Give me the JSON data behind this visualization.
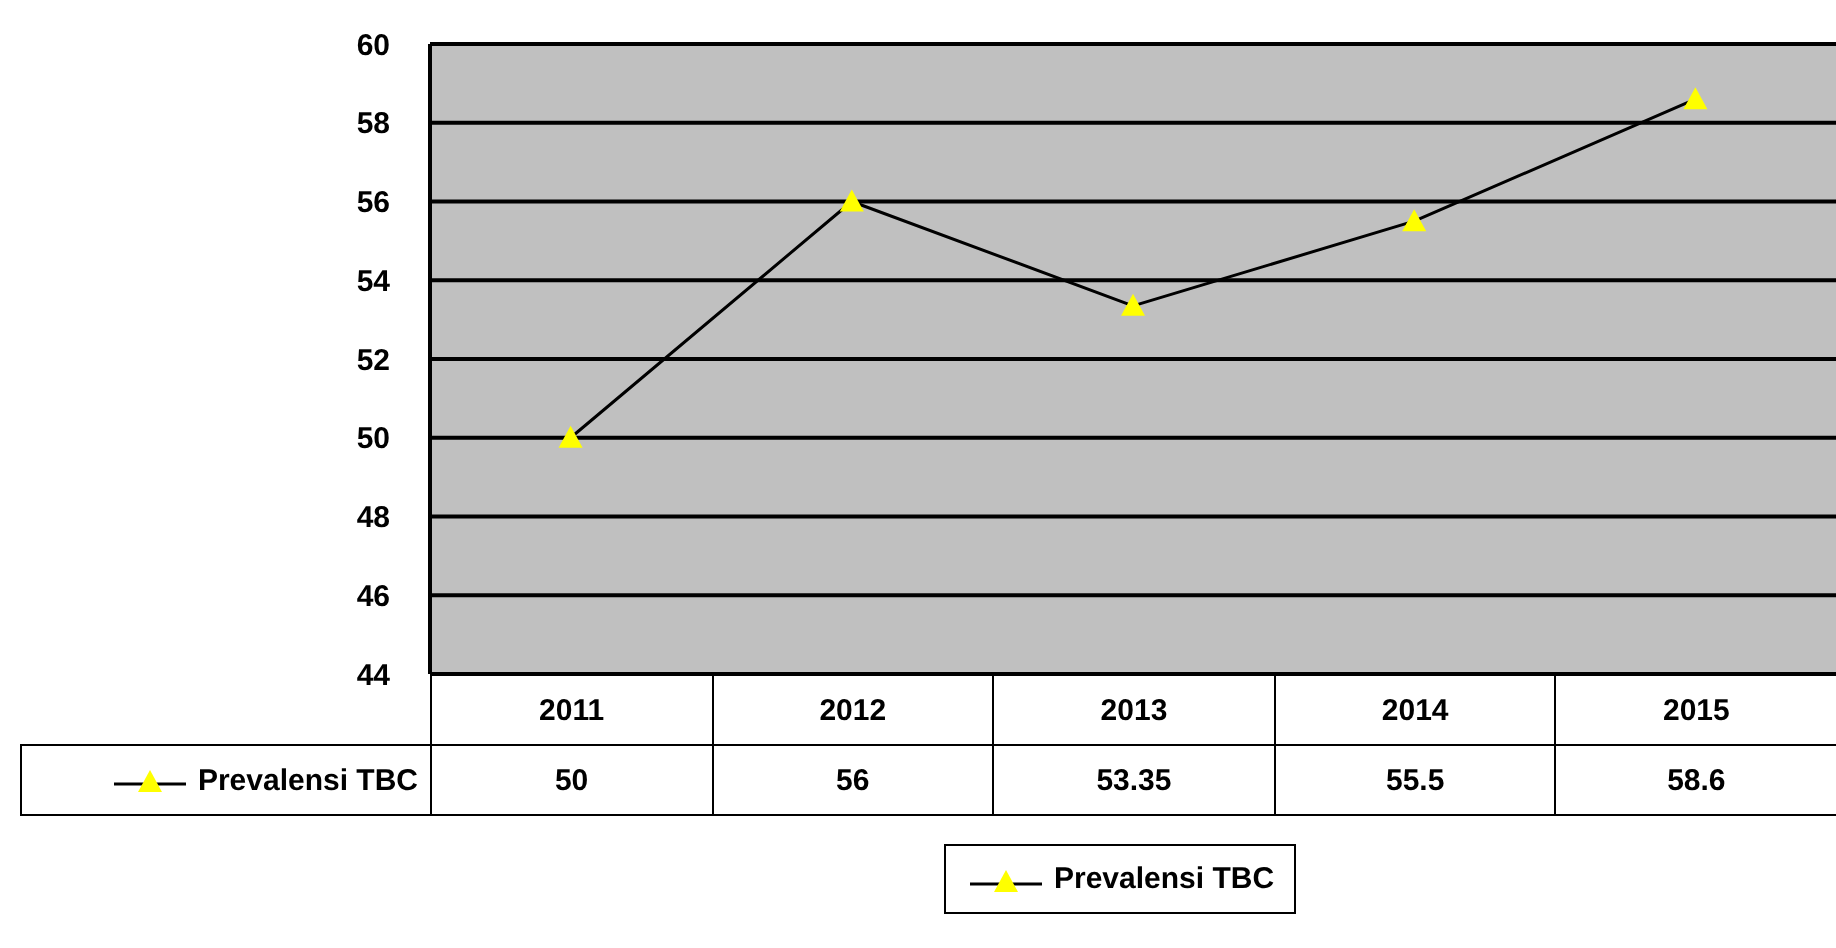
{
  "chart_data": {
    "type": "line",
    "categories": [
      "2011",
      "2012",
      "2013",
      "2014",
      "2015"
    ],
    "series": [
      {
        "name": "Prevalensi TBC",
        "color": "#ffff00",
        "values": [
          50,
          56,
          53.35,
          55.5,
          58.6
        ]
      }
    ],
    "ylim": [
      44,
      60
    ],
    "yticks": [
      44,
      46,
      48,
      50,
      52,
      54,
      56,
      58,
      60
    ],
    "grid": "y",
    "marker": "triangle",
    "data_labels": true,
    "legend": "bottom"
  }
}
